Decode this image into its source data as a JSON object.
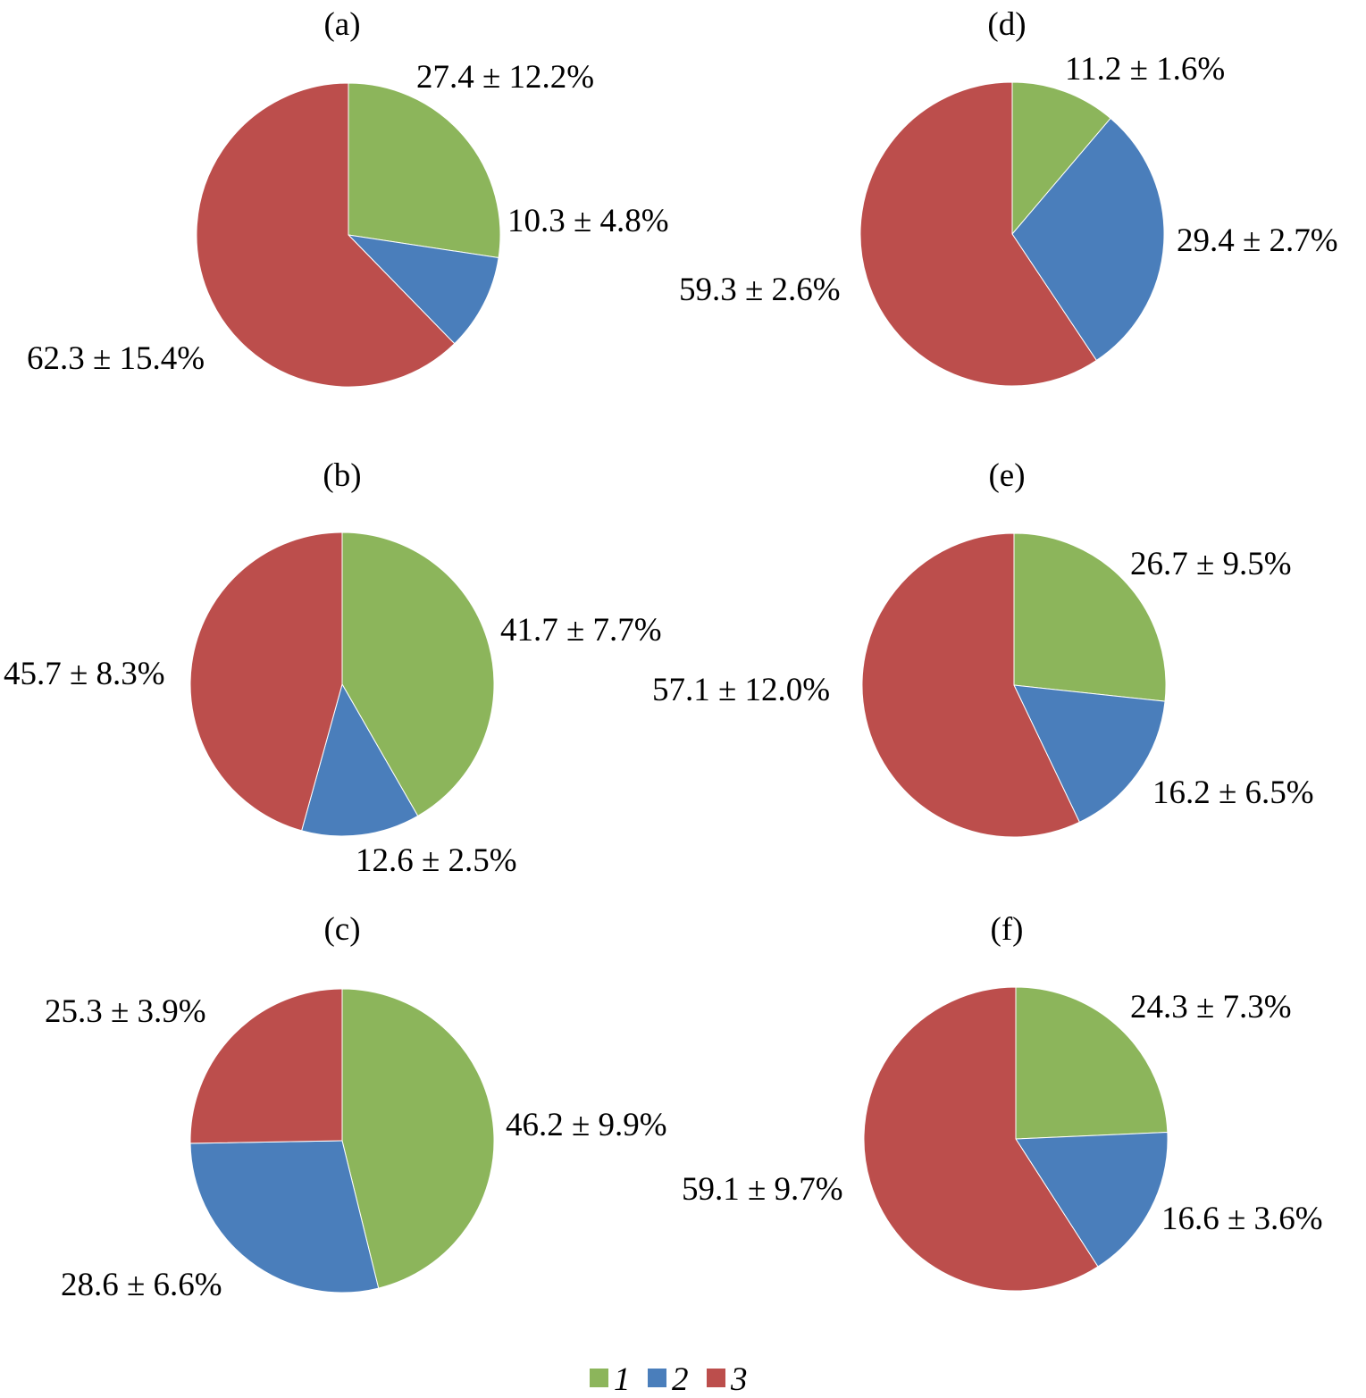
{
  "colors": {
    "1": "#8CB55B",
    "2": "#4A7EBB",
    "3": "#BC4E4C"
  },
  "legend": [
    {
      "key": "1",
      "label": "1"
    },
    {
      "key": "2",
      "label": "2"
    },
    {
      "key": "3",
      "label": "3"
    }
  ],
  "chart_data": [
    {
      "type": "pie",
      "title": "(a)",
      "categories": [
        "1",
        "2",
        "3"
      ],
      "values": [
        27.4,
        10.3,
        62.3
      ],
      "labels": [
        "27.4 ± 12.2%",
        "10.3 ± 4.8%",
        "62.3 ± 15.4%"
      ]
    },
    {
      "type": "pie",
      "title": "(b)",
      "categories": [
        "1",
        "2",
        "3"
      ],
      "values": [
        41.7,
        12.6,
        45.7
      ],
      "labels": [
        "41.7 ± 7.7%",
        "12.6 ± 2.5%",
        "45.7 ± 8.3%"
      ]
    },
    {
      "type": "pie",
      "title": "(c)",
      "categories": [
        "1",
        "2",
        "3"
      ],
      "values": [
        46.2,
        28.6,
        25.3
      ],
      "labels": [
        "46.2 ± 9.9%",
        "28.6 ± 6.6%",
        "25.3 ± 3.9%"
      ]
    },
    {
      "type": "pie",
      "title": "(d)",
      "categories": [
        "1",
        "2",
        "3"
      ],
      "values": [
        11.2,
        29.4,
        59.3
      ],
      "labels": [
        "11.2 ± 1.6%",
        "29.4 ± 2.7%",
        "59.3 ± 2.6%"
      ]
    },
    {
      "type": "pie",
      "title": "(e)",
      "categories": [
        "1",
        "2",
        "3"
      ],
      "values": [
        26.7,
        16.2,
        57.1
      ],
      "labels": [
        "26.7 ± 9.5%",
        "16.2 ± 6.5%",
        "57.1 ± 12.0%"
      ]
    },
    {
      "type": "pie",
      "title": "(f)",
      "categories": [
        "1",
        "2",
        "3"
      ],
      "values": [
        24.3,
        16.6,
        59.1
      ],
      "labels": [
        "24.3 ± 7.3%",
        "16.6 ± 3.6%",
        "59.1 ± 9.7%"
      ]
    }
  ]
}
